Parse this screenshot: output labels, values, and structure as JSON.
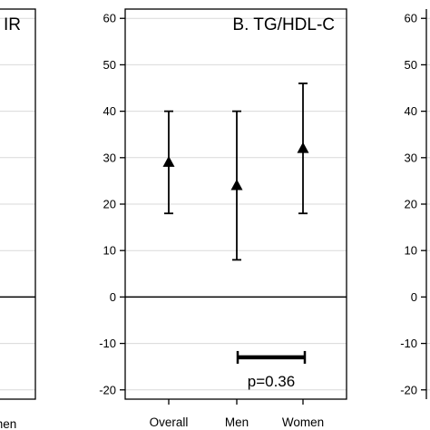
{
  "chart_data": [
    {
      "type": "scatter",
      "panel": "left-partial",
      "title": "IR",
      "categories": [
        "Women"
      ],
      "category_label_visible": "men",
      "ylim": [
        -22,
        62
      ],
      "yticks": [],
      "reference_line_y": 0,
      "grid": true
    },
    {
      "type": "scatter",
      "panel": "center",
      "title": "B. TG/HDL-C",
      "categories": [
        "Overall",
        "Men",
        "Women"
      ],
      "series": [
        {
          "values": [
            29,
            24,
            32
          ],
          "lower": [
            18,
            8,
            18
          ],
          "upper": [
            40,
            40,
            46
          ],
          "marker": "triangle"
        }
      ],
      "yticks": [
        "-20",
        "-10",
        "0",
        "10",
        "20",
        "30",
        "40",
        "50",
        "60"
      ],
      "ytick_values": [
        -20,
        -10,
        0,
        10,
        20,
        30,
        40,
        50,
        60
      ],
      "ylim": [
        -22,
        62
      ],
      "reference_line_y": 0,
      "grid": true,
      "annotation": {
        "type": "comparison-bar",
        "between": [
          "Men",
          "Women"
        ],
        "y": -13,
        "text": "p=0.36"
      }
    },
    {
      "type": "scatter",
      "panel": "right-partial",
      "yticks": [
        "-20",
        "-10",
        "0",
        "10",
        "20",
        "30",
        "40",
        "50",
        "60"
      ],
      "ytick_values": [
        -20,
        -10,
        0,
        10,
        20,
        30,
        40,
        50,
        60
      ],
      "ylim": [
        -22,
        62
      ],
      "grid": true
    }
  ],
  "colors": {
    "ink": "#000000",
    "grid": "#d9d9d9",
    "background": "#ffffff"
  }
}
